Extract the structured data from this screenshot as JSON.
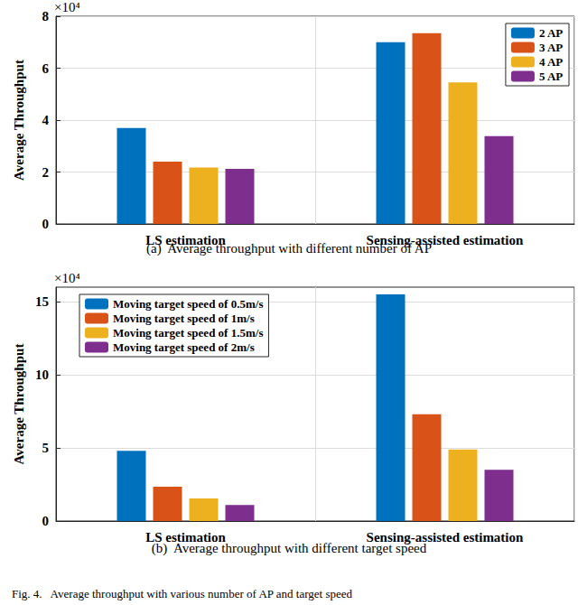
{
  "chart_data": [
    {
      "type": "bar",
      "title": "(a)  Average throughput with different number of AP",
      "ylabel": "Average Throughput",
      "annotation": "×10⁴",
      "categories": [
        "LS estimation",
        "Sensing-assisted estimation"
      ],
      "series": [
        {
          "name": "2 AP",
          "color": "#0072bd",
          "values": [
            3.7,
            7.0
          ]
        },
        {
          "name": "3 AP",
          "color": "#d95319",
          "values": [
            2.4,
            7.35
          ]
        },
        {
          "name": "4 AP",
          "color": "#edb120",
          "values": [
            2.17,
            5.45
          ]
        },
        {
          "name": "5 AP",
          "color": "#7e2f8e",
          "values": [
            2.12,
            3.38
          ]
        }
      ],
      "ylim": [
        0,
        8
      ],
      "yticks": [
        0,
        2,
        4,
        6,
        8
      ],
      "grid": true,
      "legend": "upper right"
    },
    {
      "type": "bar",
      "title": "(b)  Average throughput with different target speed",
      "ylabel": "Average Throughput",
      "annotation": "×10⁴",
      "categories": [
        "LS estimation",
        "Sensing-assisted estimation"
      ],
      "series": [
        {
          "name": "Moving target speed of 0.5m/s",
          "color": "#0072bd",
          "values": [
            4.8,
            15.5
          ]
        },
        {
          "name": "Moving target speed of 1m/s",
          "color": "#d95319",
          "values": [
            2.35,
            7.3
          ]
        },
        {
          "name": "Moving target speed of 1.5m/s",
          "color": "#edb120",
          "values": [
            1.55,
            4.9
          ]
        },
        {
          "name": "Moving target speed of 2m/s",
          "color": "#7e2f8e",
          "values": [
            1.1,
            3.5
          ]
        }
      ],
      "ylim": [
        0,
        16
      ],
      "yticks": [
        0,
        5,
        10,
        15
      ],
      "grid": true,
      "legend": "upper left"
    }
  ],
  "caption": "Fig. 4.   Average throughput with various number of AP and target speed"
}
